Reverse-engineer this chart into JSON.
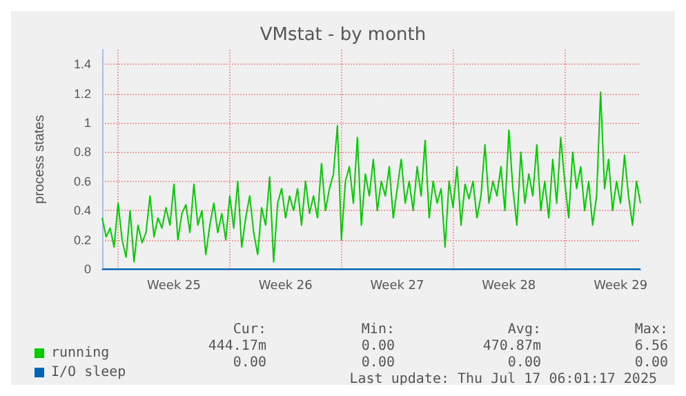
{
  "chart_data": {
    "type": "line",
    "title": "VMstat - by month",
    "ylabel": "process states",
    "categories": [
      null,
      null,
      null,
      null,
      null,
      null,
      null,
      null,
      null,
      null,
      null,
      null,
      null,
      null,
      null,
      null,
      null,
      null,
      "Week 25",
      null,
      null,
      null,
      null,
      null,
      null,
      null,
      null,
      null,
      null,
      null,
      null,
      null,
      null,
      null,
      null,
      null,
      null,
      null,
      null,
      null,
      null,
      null,
      null,
      null,
      null,
      null,
      "Week 26",
      null,
      null,
      null,
      null,
      null,
      null,
      null,
      null,
      null,
      null,
      null,
      null,
      null,
      null,
      null,
      null,
      null,
      null,
      null,
      null,
      null,
      null,
      null,
      null,
      null,
      null,
      null,
      "Week 27",
      null,
      null,
      null,
      null,
      null,
      null,
      null,
      null,
      null,
      null,
      null,
      null,
      null,
      null,
      null,
      null,
      null,
      null,
      null,
      null,
      null,
      null,
      null,
      null,
      null,
      null,
      null,
      "Week 28",
      null,
      null,
      null,
      null,
      null,
      null,
      null,
      null,
      null,
      null,
      null,
      null,
      null,
      null,
      null,
      null,
      null,
      null,
      null,
      null,
      null,
      null,
      null,
      null,
      null,
      null,
      null,
      "Week 29",
      null,
      null,
      null,
      null,
      null
    ],
    "ylim": [
      0,
      1.5
    ],
    "yticks": [
      0,
      0.2,
      0.4,
      0.6,
      0.8,
      1.0,
      1.2,
      1.4
    ],
    "grid": true,
    "legend": "bottom",
    "marker": "none",
    "series": [
      {
        "name": "running",
        "color": "#00cc00",
        "values": [
          0.35,
          0.22,
          0.28,
          0.15,
          0.45,
          0.2,
          0.08,
          0.4,
          0.05,
          0.3,
          0.18,
          0.25,
          0.5,
          0.22,
          0.35,
          0.28,
          0.42,
          0.3,
          0.58,
          0.2,
          0.38,
          0.44,
          0.25,
          0.58,
          0.3,
          0.4,
          0.1,
          0.3,
          0.45,
          0.25,
          0.38,
          0.2,
          0.5,
          0.28,
          0.6,
          0.15,
          0.35,
          0.5,
          0.25,
          0.1,
          0.42,
          0.3,
          0.63,
          0.05,
          0.45,
          0.55,
          0.35,
          0.5,
          0.4,
          0.55,
          0.3,
          0.6,
          0.38,
          0.5,
          0.35,
          0.72,
          0.4,
          0.55,
          0.65,
          0.98,
          0.2,
          0.6,
          0.7,
          0.45,
          0.9,
          0.3,
          0.65,
          0.5,
          0.75,
          0.4,
          0.6,
          0.5,
          0.7,
          0.35,
          0.55,
          0.75,
          0.45,
          0.6,
          0.4,
          0.7,
          0.5,
          0.88,
          0.35,
          0.6,
          0.45,
          0.55,
          0.15,
          0.6,
          0.42,
          0.7,
          0.3,
          0.58,
          0.48,
          0.6,
          0.35,
          0.5,
          0.85,
          0.45,
          0.6,
          0.5,
          0.7,
          0.4,
          0.95,
          0.55,
          0.3,
          0.8,
          0.45,
          0.65,
          0.5,
          0.85,
          0.4,
          0.6,
          0.35,
          0.75,
          0.45,
          0.9,
          0.6,
          0.35,
          0.8,
          0.55,
          0.7,
          0.4,
          0.6,
          0.3,
          0.5,
          1.21,
          0.55,
          0.75,
          0.4,
          0.6,
          0.45,
          0.78,
          0.5,
          0.3,
          0.6,
          0.45
        ]
      },
      {
        "name": "I/O sleep",
        "color": "#0066b3",
        "values": [
          0,
          0,
          0,
          0,
          0,
          0,
          0,
          0,
          0,
          0,
          0,
          0,
          0,
          0,
          0,
          0,
          0,
          0,
          0,
          0,
          0,
          0,
          0,
          0,
          0,
          0,
          0,
          0,
          0,
          0,
          0,
          0,
          0,
          0,
          0,
          0,
          0,
          0,
          0,
          0,
          0,
          0,
          0,
          0,
          0,
          0,
          0,
          0,
          0,
          0,
          0,
          0,
          0,
          0,
          0,
          0,
          0,
          0,
          0,
          0,
          0,
          0,
          0,
          0,
          0,
          0,
          0,
          0,
          0,
          0,
          0,
          0,
          0,
          0,
          0,
          0,
          0,
          0,
          0,
          0,
          0,
          0,
          0,
          0,
          0,
          0,
          0,
          0,
          0,
          0,
          0,
          0,
          0,
          0,
          0,
          0,
          0,
          0,
          0,
          0,
          0,
          0,
          0,
          0,
          0,
          0,
          0,
          0,
          0,
          0,
          0,
          0,
          0,
          0,
          0,
          0,
          0,
          0,
          0,
          0,
          0,
          0,
          0,
          0,
          0,
          0,
          0,
          0,
          0,
          0,
          0,
          0,
          0,
          0,
          0,
          0
        ]
      }
    ],
    "annotations": [
      "Cur:",
      "Min:",
      "Avg:",
      "Max:",
      "444.17m",
      "0.00",
      "470.87m",
      "6.56",
      "0.00",
      "0.00",
      "0.00",
      "0.00",
      "Last update: Thu Jul 17 06:01:17 2025"
    ]
  }
}
